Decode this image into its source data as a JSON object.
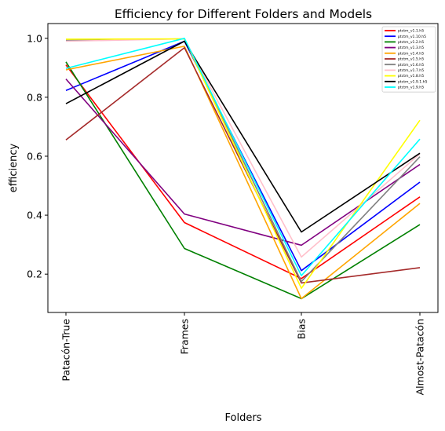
{
  "chart_data": {
    "type": "line",
    "title": "Efficiency for Different Folders and Models",
    "xlabel": "Folders",
    "ylabel": "efficiency",
    "categories": [
      "Patacón-True",
      "Frames",
      "Bias",
      "Almost-Patacón"
    ],
    "ylim": [
      0.07,
      1.05
    ],
    "yticks": [
      "0.2",
      "0.4",
      "0.6",
      "0.8",
      "1.0"
    ],
    "ytick_values": [
      0.2,
      0.4,
      0.6,
      0.8,
      1.0
    ],
    "grid": false,
    "legend_position": "top-right",
    "series": [
      {
        "name": "ptctm_v1.1.h5",
        "color": "#ff0000",
        "values": [
          0.91,
          0.375,
          0.185,
          0.462
        ]
      },
      {
        "name": "ptctm_v1.10.h5",
        "color": "#0000ff",
        "values": [
          0.823,
          0.99,
          0.212,
          0.512
        ]
      },
      {
        "name": "ptctm_v1.2.h5",
        "color": "#008000",
        "values": [
          0.92,
          0.287,
          0.117,
          0.368
        ]
      },
      {
        "name": "ptctm_v1.3.h5",
        "color": "#800080",
        "values": [
          0.862,
          0.404,
          0.298,
          0.572
        ]
      },
      {
        "name": "ptctm_v1.4.h5",
        "color": "#ffa500",
        "values": [
          0.893,
          0.973,
          0.117,
          0.44
        ]
      },
      {
        "name": "ptctm_v1.5.h5",
        "color": "#a52a2a",
        "values": [
          0.655,
          0.968,
          0.17,
          0.222
        ]
      },
      {
        "name": "ptctm_v1.6.h5",
        "color": "#808080",
        "values": [
          0.993,
          0.998,
          0.175,
          0.598
        ]
      },
      {
        "name": "ptctm_v1.7.h5",
        "color": "#ffc0cb",
        "values": [
          0.99,
          0.998,
          0.258,
          0.608
        ]
      },
      {
        "name": "ptctm_v1.8.h5",
        "color": "#ffff00",
        "values": [
          0.997,
          0.998,
          0.152,
          0.722
        ]
      },
      {
        "name": "ptctm_v1.9.1.h5",
        "color": "#000000",
        "values": [
          0.778,
          0.99,
          0.343,
          0.61
        ]
      },
      {
        "name": "ptctm_v1.9.h5",
        "color": "#00ffff",
        "values": [
          0.898,
          1.0,
          0.195,
          0.658
        ]
      }
    ]
  }
}
